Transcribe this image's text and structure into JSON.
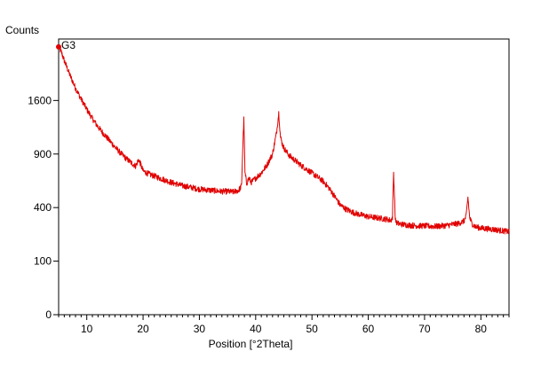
{
  "chart_data": {
    "type": "line",
    "title": "",
    "xlabel": "Position [°2Theta]",
    "ylabel": "Counts",
    "xlim": [
      5,
      85
    ],
    "y_scale": "sqrt",
    "ylim": [
      0,
      2650
    ],
    "x_ticks": [
      10,
      20,
      30,
      40,
      50,
      60,
      70,
      80
    ],
    "y_ticks": [
      0,
      100,
      400,
      900,
      1600
    ],
    "grid": false,
    "legend": "none",
    "series": [
      {
        "name": "G3",
        "color": "#e00000",
        "x": [
          5,
          5.5,
          6,
          7,
          8,
          9,
          10,
          11,
          12,
          13,
          14,
          15,
          16,
          17,
          18,
          18.7,
          19.2,
          19.5,
          20,
          21,
          22,
          23,
          24,
          25,
          26,
          27,
          28,
          29,
          30,
          31,
          32,
          33,
          34,
          35,
          36,
          37,
          37.5,
          37.9,
          38.1,
          38.4,
          38.8,
          39.2,
          40,
          41,
          42,
          43,
          43.7,
          44.1,
          44.4,
          44.8,
          45.2,
          46,
          47,
          48,
          49,
          50,
          51,
          52,
          53,
          54,
          55,
          56,
          57,
          58,
          59,
          60,
          61,
          62,
          63,
          64,
          64.3,
          64.5,
          64.8,
          65.2,
          66,
          67,
          68,
          69,
          70,
          71,
          72,
          73,
          74,
          75,
          76,
          77,
          77.4,
          77.7,
          78,
          78.4,
          79,
          80,
          81,
          82,
          83,
          84,
          85
        ],
        "y": [
          2500,
          2400,
          2250,
          2000,
          1790,
          1620,
          1470,
          1340,
          1230,
          1140,
          1060,
          980,
          910,
          850,
          800,
          770,
          840,
          800,
          720,
          690,
          670,
          650,
          630,
          610,
          595,
          580,
          570,
          560,
          550,
          545,
          540,
          535,
          530,
          530,
          525,
          540,
          580,
          1330,
          700,
          600,
          650,
          610,
          650,
          700,
          780,
          900,
          1150,
          1420,
          1100,
          1000,
          950,
          880,
          830,
          780,
          740,
          700,
          660,
          620,
          560,
          490,
          420,
          390,
          370,
          355,
          345,
          335,
          330,
          325,
          320,
          310,
          330,
          700,
          310,
          290,
          285,
          280,
          278,
          275,
          275,
          273,
          272,
          275,
          278,
          285,
          290,
          305,
          340,
          480,
          330,
          290,
          270,
          262,
          258,
          255,
          250,
          245,
          240
        ]
      }
    ]
  }
}
